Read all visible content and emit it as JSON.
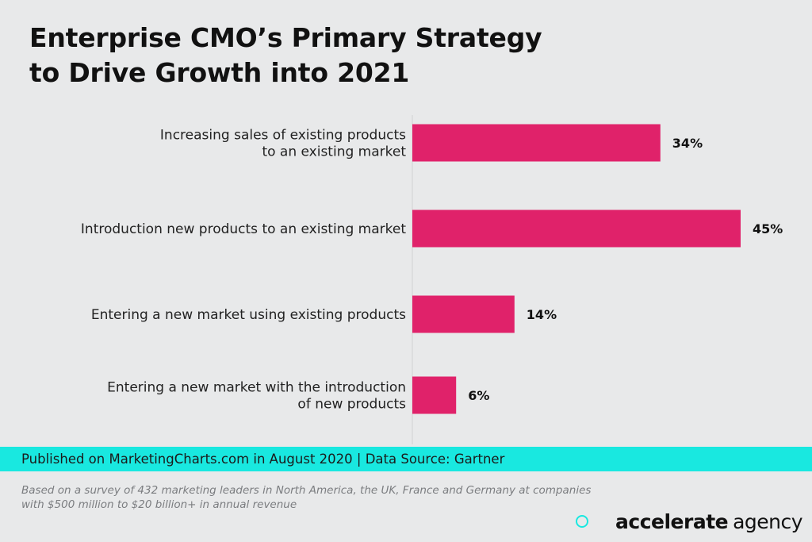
{
  "title_lines": [
    "Enterprise CMO’s Primary Strategy",
    "to Drive Growth into 2021"
  ],
  "chart_data": {
    "type": "bar",
    "orientation": "horizontal",
    "title": "Enterprise CMO’s Primary Strategy to Drive Growth into 2021",
    "categories": [
      [
        "Increasing sales of existing products",
        "to an existing market"
      ],
      [
        "Introduction new products to an existing market"
      ],
      [
        "Entering a new market using existing products"
      ],
      [
        "Entering a new market with the introduction",
        "of new products"
      ]
    ],
    "values": [
      34,
      45,
      14,
      6
    ],
    "value_labels": [
      "34%",
      "45%",
      "14%",
      "6%"
    ],
    "unit": "%",
    "xlim": [
      0,
      45
    ],
    "bar_color": "#e0226a",
    "grid": false
  },
  "source": "Published on MarketingCharts.com in August 2020 | Data Source: Gartner",
  "note_lines": [
    "Based on a survey of 432 marketing leaders in North America, the UK, France and Germany at companies",
    "with $500 million  to $20 billion+ in annual revenue"
  ],
  "brand": {
    "bold": "accelerate",
    "light": "agency"
  },
  "colors": {
    "background": "#e8e9ea",
    "accent": "#19e8e0",
    "bar": "#e0226a"
  }
}
